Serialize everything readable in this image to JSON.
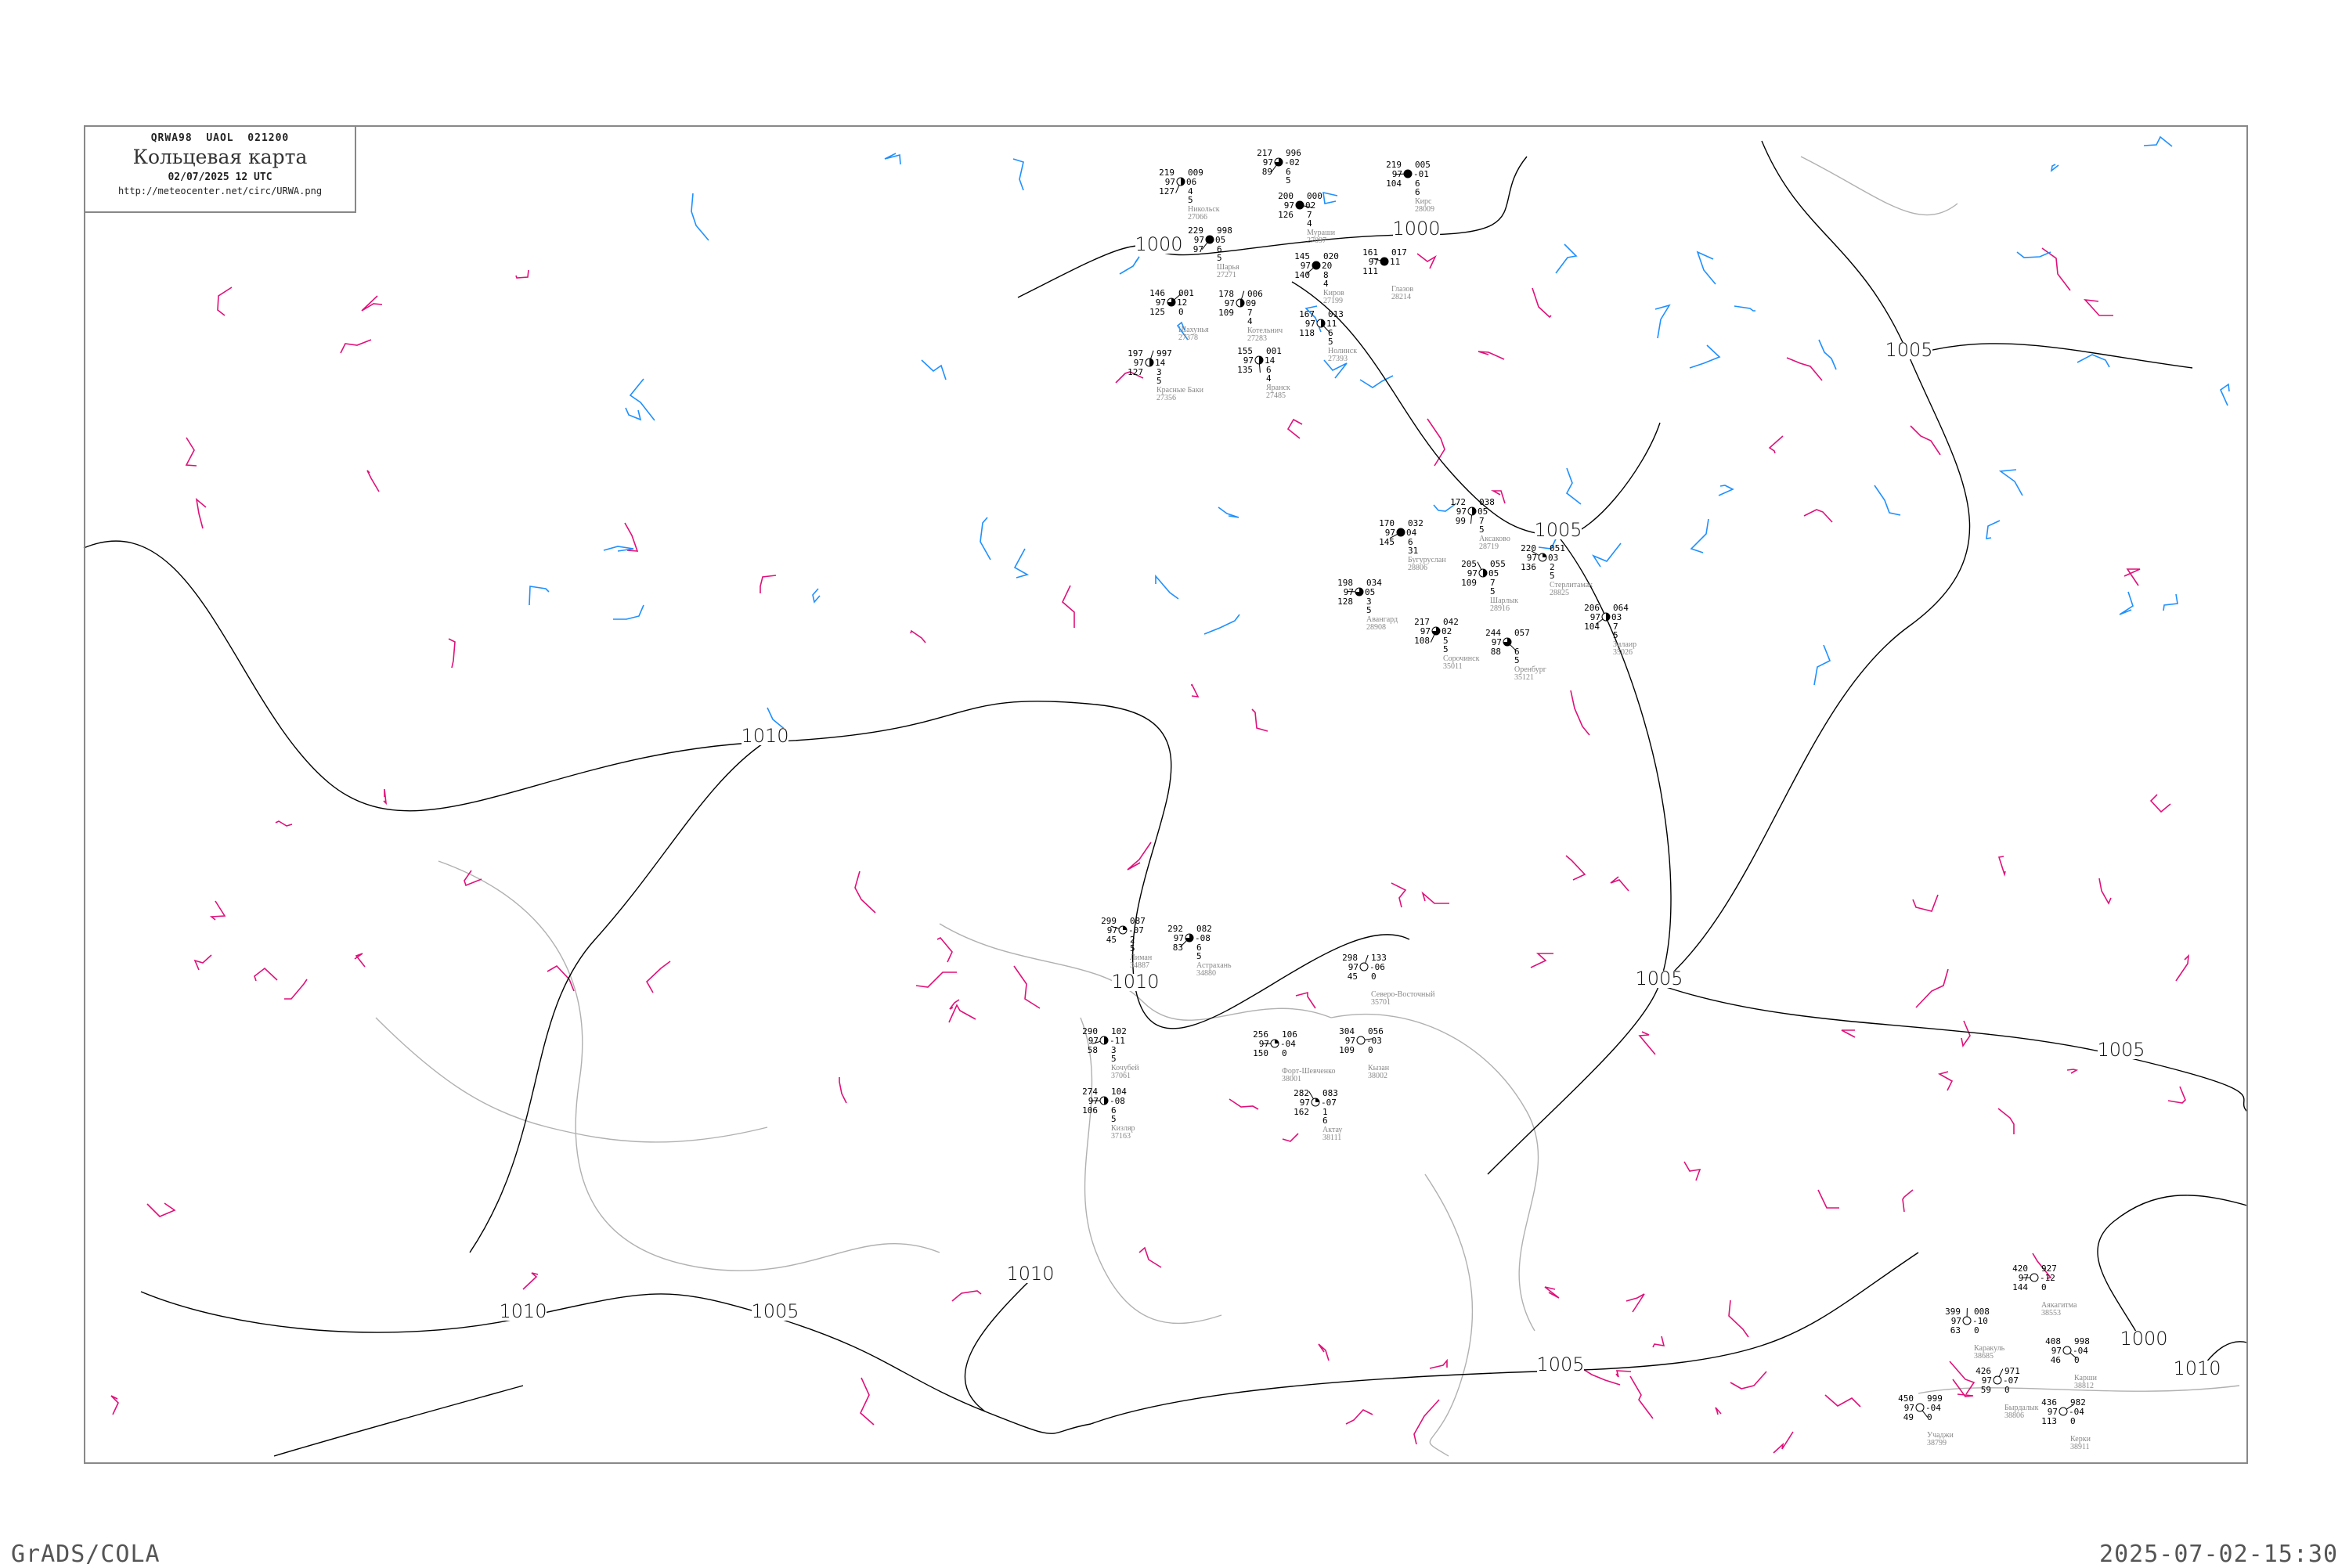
{
  "header": {
    "code": "QRWA98  UAOL  021200",
    "title": "Кольцевая карта",
    "date": "02/07/2025 12 UTC",
    "url": "http://meteocenter.net/circ/URWA.png"
  },
  "footer": {
    "left": "GrADS/COLA",
    "right": "2025-07-02-15:30"
  },
  "colors": {
    "isobar": "#000000",
    "isallobar_rise": "#e0107a",
    "isallobar_fall": "#1e90ff",
    "coastline": "#b0b0b0",
    "station_name": "#888888",
    "precip_marker_red": "#ee3366",
    "precip_marker_green": "#22cc44"
  },
  "isobar_labels": [
    "1000",
    "1000",
    "1000",
    "1005",
    "1005",
    "1005",
    "1005",
    "1005",
    "1005",
    "1010",
    "1010",
    "1010",
    "1010",
    "1010"
  ],
  "stations": [
    {
      "name": "Астрахань",
      "id": "34880",
      "t": "292",
      "pp": "082",
      "c": "97",
      "tend": "-08",
      "td": "83",
      "r1": "6",
      "r2": "5",
      "cover": 0.75
    },
    {
      "name": "Лиман",
      "id": "34887",
      "t": "299",
      "pp": "087",
      "c": "97",
      "tend": "-07",
      "td": "45",
      "r1": "2",
      "r2": "5",
      "cover": 0.25
    },
    {
      "name": "Северо-Восточный",
      "id": "35701",
      "t": "298",
      "pp": "133",
      "c": "97",
      "tend": "-06",
      "td": "45",
      "r1": "0",
      "r2": "",
      "cover": 0
    },
    {
      "name": "Форт-Шевченко",
      "id": "38001",
      "t": "256",
      "pp": "106",
      "c": "97",
      "tend": "-04",
      "td": "150",
      "r1": "0",
      "r2": "",
      "cover": 0.25
    },
    {
      "name": "Кызан",
      "id": "38002",
      "t": "304",
      "pp": "056",
      "c": "97",
      "tend": "-03",
      "td": "109",
      "r1": "0",
      "r2": "",
      "cover": 0
    },
    {
      "name": "Актау",
      "id": "38111",
      "t": "282",
      "pp": "083",
      "c": "97",
      "tend": "-07",
      "td": "162",
      "r1": "1",
      "r2": "6",
      "cover": 0.25
    },
    {
      "name": "Кочубей",
      "id": "37061",
      "t": "290",
      "pp": "102",
      "c": "97",
      "tend": "-11",
      "td": "58",
      "r1": "3",
      "r2": "5",
      "cover": 0.5
    },
    {
      "name": "Кизляр",
      "id": "37163",
      "t": "274",
      "pp": "104",
      "c": "97",
      "tend": "-08",
      "td": "106",
      "r1": "6",
      "r2": "5",
      "cover": 0.5
    },
    {
      "name": "",
      "id": "",
      "t": "217",
      "pp": "996",
      "c": "97",
      "tend": "-02",
      "td": "89",
      "r1": "6",
      "r2": "5",
      "cover": 0.75
    },
    {
      "name": "Никольск",
      "id": "27066",
      "t": "219",
      "pp": "009",
      "c": "97",
      "tend": "06",
      "td": "127",
      "r1": "4",
      "r2": "5",
      "cover": 0.5
    },
    {
      "name": "Мураши",
      "id": "27097",
      "t": "200",
      "pp": "000",
      "c": "97",
      "tend": "02",
      "td": "126",
      "r1": "7",
      "r2": "4",
      "cover": 1
    },
    {
      "name": "Кирс",
      "id": "28009",
      "t": "219",
      "pp": "005",
      "c": "97",
      "tend": "-01",
      "td": "104",
      "r1": "6",
      "r2": "6",
      "cover": 1
    },
    {
      "name": "Шарья",
      "id": "27271",
      "t": "229",
      "pp": "998",
      "c": "97",
      "tend": "05",
      "td": "97",
      "r1": "6",
      "r2": "5",
      "cover": 1
    },
    {
      "name": "Киров",
      "id": "27199",
      "t": "145",
      "pp": "020",
      "c": "97",
      "tend": "20",
      "td": "140",
      "r1": "8",
      "r2": "4",
      "cover": 1
    },
    {
      "name": "Котельнич",
      "id": "27283",
      "t": "178",
      "pp": "006",
      "c": "97",
      "tend": "09",
      "td": "109",
      "r1": "7",
      "r2": "4",
      "cover": 0.5
    },
    {
      "name": "Глазов",
      "id": "28214",
      "t": "161",
      "pp": "017",
      "c": "97",
      "tend": "11",
      "td": "111",
      "r1": "",
      "r2": "",
      "cover": 1
    },
    {
      "name": "Шахунья",
      "id": "27378",
      "t": "146",
      "pp": "001",
      "c": "97",
      "tend": "12",
      "td": "125",
      "r1": "0",
      "r2": "",
      "cover": 0.75
    },
    {
      "name": "Нолинск",
      "id": "27393",
      "t": "167",
      "pp": "013",
      "c": "97",
      "tend": "11",
      "td": "118",
      "r1": "6",
      "r2": "5",
      "cover": 0.5
    },
    {
      "name": "Яранск",
      "id": "27485",
      "t": "155",
      "pp": "001",
      "c": "97",
      "tend": "14",
      "td": "135",
      "r1": "6",
      "r2": "4",
      "cover": 0.5
    },
    {
      "name": "Красные Баки",
      "id": "27356",
      "t": "197",
      "pp": "997",
      "c": "97",
      "tend": "14",
      "td": "127",
      "r1": "3",
      "r2": "5",
      "cover": 0.5
    },
    {
      "name": "Аксаково",
      "id": "28719",
      "t": "172",
      "pp": "038",
      "c": "97",
      "tend": "05",
      "td": "99",
      "r1": "7",
      "r2": "5",
      "cover": 0.5
    },
    {
      "name": "Стерлитамак",
      "id": "28825",
      "t": "220",
      "pp": "051",
      "c": "97",
      "tend": "03",
      "td": "136",
      "r1": "2",
      "r2": "5",
      "cover": 0.25
    },
    {
      "name": "Бугуруслан",
      "id": "28806",
      "t": "170",
      "pp": "032",
      "c": "97",
      "tend": "04",
      "td": "145",
      "r1": "6",
      "r2": "31",
      "cover": 1
    },
    {
      "name": "Шарлык",
      "id": "28916",
      "t": "205",
      "pp": "055",
      "c": "97",
      "tend": "05",
      "td": "109",
      "r1": "7",
      "r2": "5",
      "cover": 0.5
    },
    {
      "name": "Авангард",
      "id": "28908",
      "t": "198",
      "pp": "034",
      "c": "97",
      "tend": "05",
      "td": "128",
      "r1": "3",
      "r2": "5",
      "cover": 0.75
    },
    {
      "name": "Сорочинск",
      "id": "35011",
      "t": "217",
      "pp": "042",
      "c": "97",
      "tend": "02",
      "td": "108",
      "r1": "5",
      "r2": "5",
      "cover": 0.75
    },
    {
      "name": "Оренбург",
      "id": "35121",
      "t": "244",
      "pp": "057",
      "c": "97",
      "tend": "",
      "td": "88",
      "r1": "6",
      "r2": "5",
      "cover": 0.75
    },
    {
      "name": "Зилаир",
      "id": "35026",
      "t": "206",
      "pp": "064",
      "c": "97",
      "tend": "03",
      "td": "104",
      "r1": "7",
      "r2": "5",
      "cover": 0.5
    },
    {
      "name": "Аякагитма",
      "id": "38553",
      "t": "420",
      "pp": "927",
      "c": "97",
      "tend": "-12",
      "td": "144",
      "r1": "0",
      "r2": "",
      "cover": 0
    },
    {
      "name": "Каракуль",
      "id": "38685",
      "t": "399",
      "pp": "008",
      "c": "97",
      "tend": "-10",
      "td": "63",
      "r1": "0",
      "r2": "",
      "cover": 0
    },
    {
      "name": "Карши",
      "id": "38812",
      "t": "408",
      "pp": "998",
      "c": "97",
      "tend": "-04",
      "td": "46",
      "r1": "0",
      "r2": "",
      "cover": 0
    },
    {
      "name": "Бырдалык",
      "id": "38806",
      "t": "426",
      "pp": "971",
      "c": "97",
      "tend": "-07",
      "td": "59",
      "r1": "0",
      "r2": "",
      "cover": 0
    },
    {
      "name": "Учаджи",
      "id": "38799",
      "t": "450",
      "pp": "999",
      "c": "97",
      "tend": "-04",
      "td": "49",
      "r1": "0",
      "r2": "",
      "cover": 0
    },
    {
      "name": "Керки",
      "id": "38911",
      "t": "436",
      "pp": "982",
      "c": "97",
      "tend": "-04",
      "td": "113",
      "r1": "0",
      "r2": "",
      "cover": 0
    }
  ]
}
